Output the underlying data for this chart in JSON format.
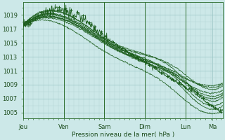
{
  "background_color": "#cce8e8",
  "plot_bg_color": "#cce8e8",
  "grid_minor_color": "#b0d4d4",
  "grid_major_color": "#99c4c4",
  "line_color": "#1a5c1a",
  "marker_color": "#1a5c1a",
  "ylabel_ticks": [
    1005,
    1007,
    1009,
    1011,
    1013,
    1015,
    1017,
    1019
  ],
  "x_ticks_labels": [
    "Jeu",
    "Ven",
    "Sam",
    "Dim",
    "Lun",
    "Ma"
  ],
  "x_ticks_pos": [
    0,
    24,
    48,
    72,
    96,
    112
  ],
  "xlabel": "Pression niveau de la mer( hPa )",
  "ylim": [
    1004.2,
    1020.8
  ],
  "xlim": [
    0,
    118
  ],
  "day_lines": [
    24,
    48,
    72,
    96
  ],
  "figsize": [
    3.2,
    2.0
  ],
  "dpi": 100
}
